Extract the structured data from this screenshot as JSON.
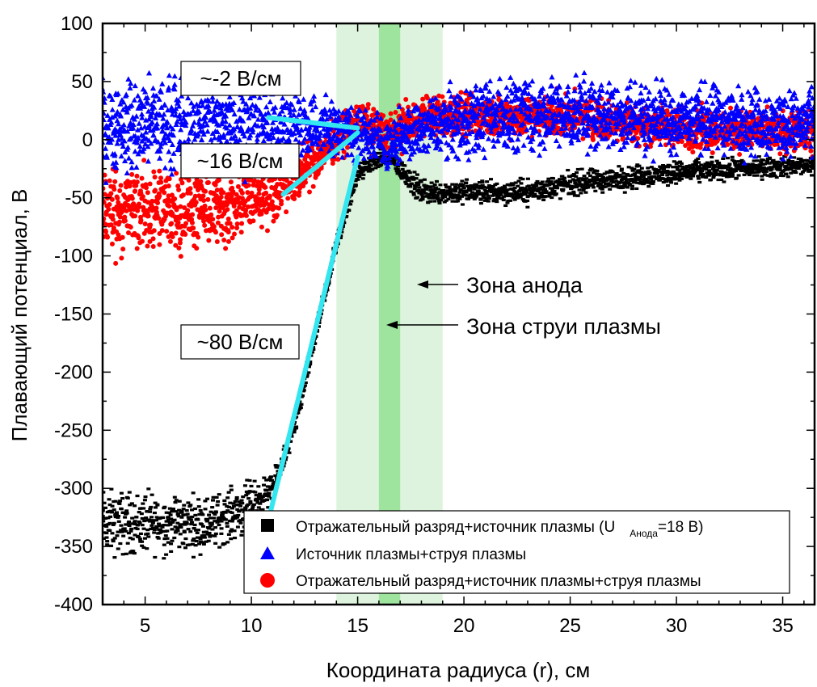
{
  "chart_data": {
    "type": "scatter",
    "xlabel": "Координата радиуса (r), см",
    "ylabel": "Плавающий потенциал, В",
    "xlim": [
      3,
      36.5
    ],
    "ylim": [
      -400,
      100
    ],
    "xticks": [
      5,
      10,
      15,
      20,
      25,
      30,
      35
    ],
    "yticks": [
      100,
      50,
      0,
      -50,
      -100,
      -150,
      -200,
      -250,
      -300,
      -350,
      -400
    ],
    "grid": false,
    "legend_position": "bottom-right",
    "legend": {
      "s1_main": "Отражательный разряд+источник плазмы (U",
      "s1_sub": "Анода",
      "s1_tail": "=18 В)",
      "s2": "Источник плазмы+струя плазмы",
      "s3": "Отражательный разряд+источник плазмы+струя плазмы"
    },
    "series": [
      {
        "name": "Отражательный разряд+источник плазмы (U Анода=18 В)",
        "color": "#000000",
        "marker": "square",
        "profile": [
          [
            3,
            -330
          ],
          [
            8,
            -330
          ],
          [
            10,
            -315
          ],
          [
            11,
            -300
          ],
          [
            12,
            -250
          ],
          [
            13,
            -170
          ],
          [
            14,
            -90
          ],
          [
            15,
            -30
          ],
          [
            15.8,
            -18
          ],
          [
            16.5,
            -15
          ],
          [
            17,
            -25
          ],
          [
            18,
            -45
          ],
          [
            21,
            -45
          ],
          [
            23,
            -45
          ],
          [
            25,
            -38
          ],
          [
            30,
            -28
          ],
          [
            36.5,
            -22
          ]
        ],
        "spread_V": [
          [
            3,
            40
          ],
          [
            10,
            30
          ],
          [
            11,
            15
          ],
          [
            14.5,
            10
          ],
          [
            15,
            10
          ],
          [
            18,
            15
          ],
          [
            25,
            15
          ],
          [
            36.5,
            12
          ]
        ]
      },
      {
        "name": "Источник плазмы+струя плазмы",
        "color": "#0000ff",
        "marker": "triangle",
        "profile": [
          [
            3,
            12
          ],
          [
            10,
            15
          ],
          [
            14,
            10
          ],
          [
            15,
            6
          ],
          [
            16,
            0
          ],
          [
            16.5,
            -8
          ],
          [
            17,
            2
          ],
          [
            19,
            14
          ],
          [
            22,
            22
          ],
          [
            25,
            22
          ],
          [
            30,
            18
          ],
          [
            36.5,
            13
          ]
        ],
        "spread_V": [
          [
            3,
            55
          ],
          [
            10,
            55
          ],
          [
            14,
            35
          ],
          [
            16.5,
            30
          ],
          [
            17,
            30
          ],
          [
            20,
            45
          ],
          [
            36.5,
            40
          ]
        ]
      },
      {
        "name": "Отражательный разряд+источник плазмы+струя плазмы",
        "color": "#ff0000",
        "marker": "circle",
        "profile": [
          [
            3,
            -60
          ],
          [
            9,
            -60
          ],
          [
            10,
            -50
          ],
          [
            12,
            -35
          ],
          [
            14,
            0
          ],
          [
            15,
            15
          ],
          [
            16.5,
            5
          ],
          [
            17,
            10
          ],
          [
            18,
            20
          ],
          [
            25,
            20
          ],
          [
            30,
            10
          ],
          [
            36.5,
            5
          ]
        ],
        "spread_V": [
          [
            3,
            55
          ],
          [
            10,
            45
          ],
          [
            12,
            30
          ],
          [
            14,
            25
          ],
          [
            16,
            25
          ],
          [
            18,
            25
          ],
          [
            36.5,
            25
          ]
        ]
      }
    ],
    "gradient_lines": [
      {
        "label": "~-2 В/см",
        "from": [
          10.8,
          19
        ],
        "to": [
          15.0,
          10
        ]
      },
      {
        "label": "~16 В/см",
        "from": [
          11.5,
          -47
        ],
        "to": [
          15.0,
          6
        ]
      },
      {
        "label": "~80 В/см",
        "from": [
          10.7,
          -335
        ],
        "to": [
          15.0,
          -15
        ]
      }
    ],
    "bands": [
      {
        "label": "Зона анода",
        "x": [
          14,
          19
        ],
        "color": "#cfeecf"
      },
      {
        "label": "Зона струи плазмы",
        "x": [
          16,
          17
        ],
        "color": "#8fe08f"
      }
    ]
  }
}
